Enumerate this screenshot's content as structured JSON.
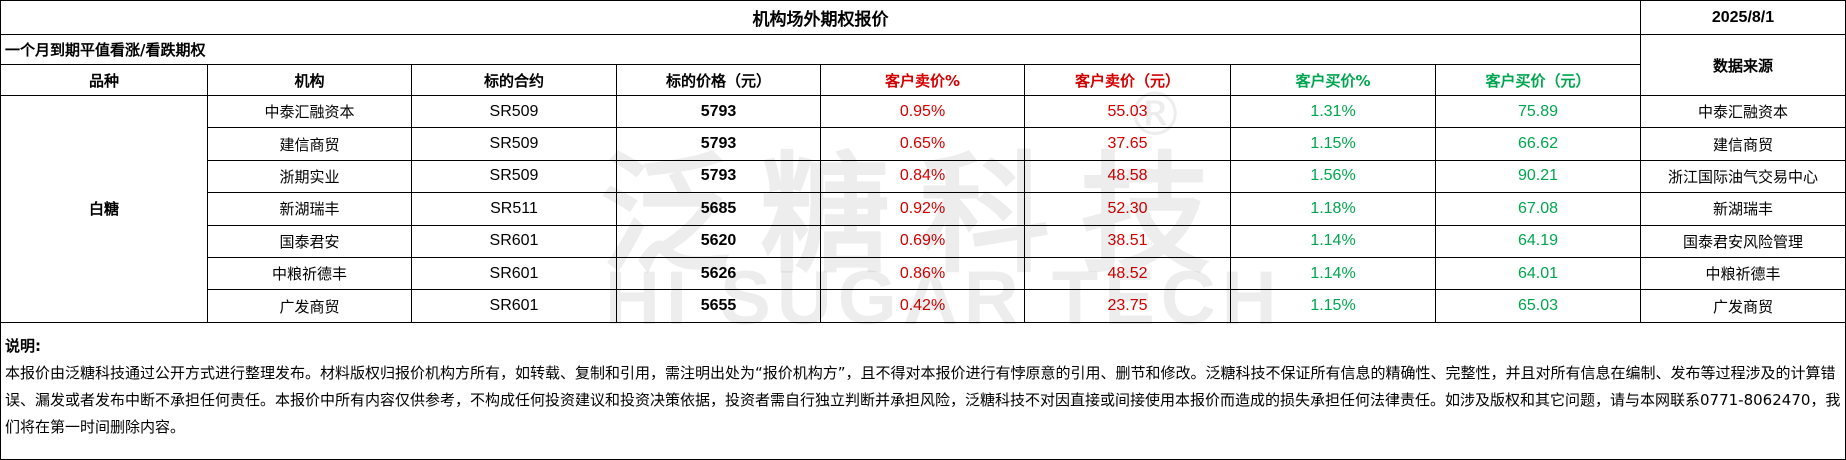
{
  "title": "机构场外期权报价",
  "date": "2025/8/1",
  "subtitle": "一个月到期平值看涨/看跌期权",
  "source_header": "数据来源",
  "headers": [
    "品种",
    "机构",
    "标的合约",
    "标的价格（元）",
    "客户卖价%",
    "客户卖价（元）",
    "客户买价%",
    "客户买价（元）"
  ],
  "variety": "白糖",
  "rows": [
    {
      "inst": "中泰汇融资本",
      "contract": "SR509",
      "price": "5793",
      "sell_pct": "0.95%",
      "sell": "55.03",
      "buy_pct": "1.31%",
      "buy": "75.89",
      "source": "中泰汇融资本"
    },
    {
      "inst": "建信商贸",
      "contract": "SR509",
      "price": "5793",
      "sell_pct": "0.65%",
      "sell": "37.65",
      "buy_pct": "1.15%",
      "buy": "66.62",
      "source": "建信商贸"
    },
    {
      "inst": "浙期实业",
      "contract": "SR509",
      "price": "5793",
      "sell_pct": "0.84%",
      "sell": "48.58",
      "buy_pct": "1.56%",
      "buy": "90.21",
      "source": "浙江国际油气交易中心"
    },
    {
      "inst": "新湖瑞丰",
      "contract": "SR511",
      "price": "5685",
      "sell_pct": "0.92%",
      "sell": "52.30",
      "buy_pct": "1.18%",
      "buy": "67.08",
      "source": "新湖瑞丰"
    },
    {
      "inst": "国泰君安",
      "contract": "SR601",
      "price": "5620",
      "sell_pct": "0.69%",
      "sell": "38.51",
      "buy_pct": "1.14%",
      "buy": "64.19",
      "source": "国泰君安风险管理"
    },
    {
      "inst": "中粮祈德丰",
      "contract": "SR601",
      "price": "5626",
      "sell_pct": "0.86%",
      "sell": "48.52",
      "buy_pct": "1.14%",
      "buy": "64.01",
      "source": "中粮祈德丰"
    },
    {
      "inst": "广发商贸",
      "contract": "SR601",
      "price": "5655",
      "sell_pct": "0.42%",
      "sell": "23.75",
      "buy_pct": "1.15%",
      "buy": "65.03",
      "source": "广发商贸"
    }
  ],
  "notes_title": "说明:",
  "notes_body": "本报价由泛糖科技通过公开方式进行整理发布。材料版权归报价机构方所有，如转载、复制和引用，需注明出处为“报价机构方”，且不得对本报价进行有悖原意的引用、删节和修改。泛糖科技不保证所有信息的精确性、完整性，并且对所有信息在编制、发布等过程涉及的计算错误、漏发或者发布中断不承担任何责任。本报价中所有内容仅供参考，不构成任何投资建议和投资决策依据，投资者需自行独立判断并承担风险，泛糖科技不对因直接或间接使用本报价而造成的损失承担任何法律责任。如涉及版权和其它问题，请与本网联系0771-8062470，我们将在第一时间删除内容。",
  "watermark": {
    "cn": "泛糖科技",
    "en": "HI SUGAR TECH",
    "mark": "®"
  },
  "colors": {
    "sell": "#d40000",
    "buy": "#00a64f"
  }
}
